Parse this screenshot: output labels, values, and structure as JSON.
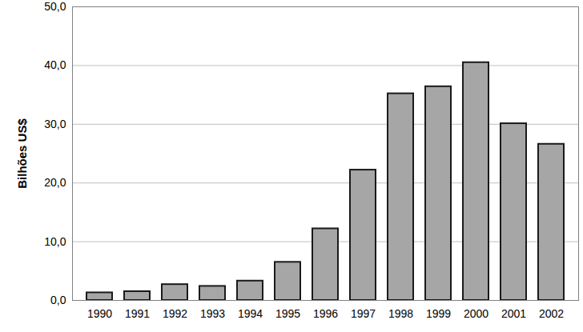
{
  "chart_data": {
    "type": "bar",
    "y_label": "Bilhões US$",
    "categories": [
      "1990",
      "1991",
      "1992",
      "1993",
      "1994",
      "1995",
      "1996",
      "1997",
      "1998",
      "1999",
      "2000",
      "2001",
      "2002"
    ],
    "values": [
      1.3,
      1.5,
      2.7,
      2.4,
      3.3,
      6.5,
      12.2,
      22.2,
      35.2,
      36.4,
      40.5,
      30.1,
      26.6
    ],
    "color": "#a6a6a6",
    "ylim": [
      0,
      50
    ],
    "yticks": [
      {
        "value": 0,
        "label": "0,0"
      },
      {
        "value": 10,
        "label": "10,0"
      },
      {
        "value": 20,
        "label": "20,0"
      },
      {
        "value": 30,
        "label": "30,0"
      },
      {
        "value": 40,
        "label": "40,0"
      },
      {
        "value": 50,
        "label": "50,0"
      }
    ],
    "grid": true
  }
}
